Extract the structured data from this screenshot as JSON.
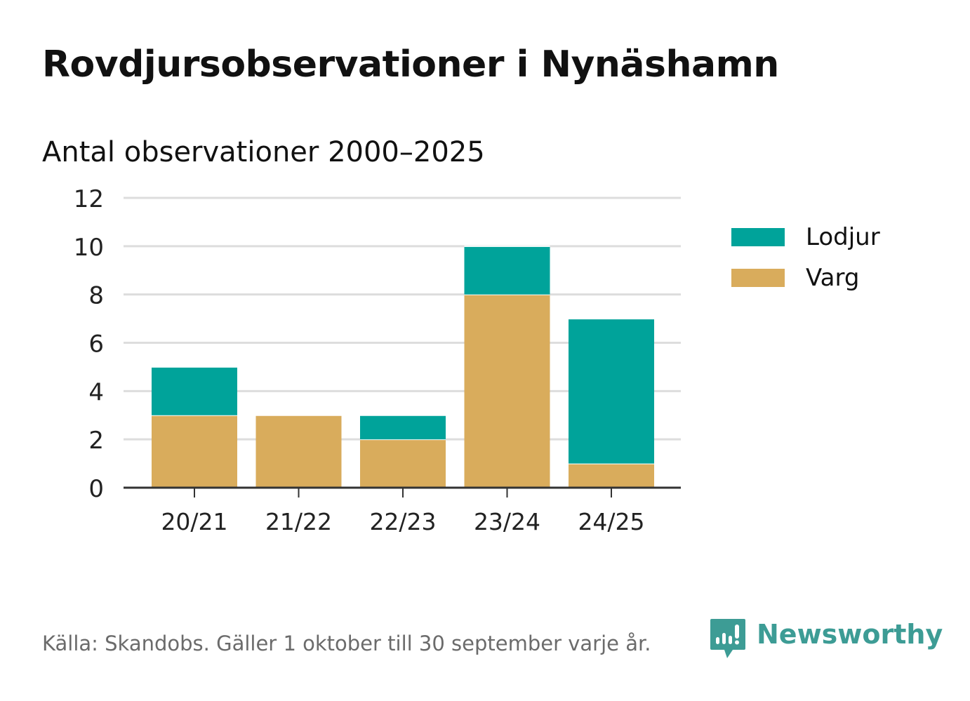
{
  "title": "Rovdjursobservationer i Nynäshamn",
  "subtitle": "Antal observationer 2000–2025",
  "source": "Källa: Skandobs. Gäller 1 oktober till 30 september varje år.",
  "brand": {
    "name": "Newsworthy",
    "icon": "newsworthy-logo-icon",
    "color": "#3d9c95"
  },
  "colors": {
    "lodjur": "#00a39a",
    "varg": "#d9ac5c",
    "grid": "#dddddd",
    "axis": "#333333"
  },
  "legend": [
    {
      "label": "Lodjur",
      "color": "#00a39a"
    },
    {
      "label": "Varg",
      "color": "#d9ac5c"
    }
  ],
  "chart_data": {
    "type": "bar",
    "stacked": true,
    "categories": [
      "20/21",
      "21/22",
      "22/23",
      "23/24",
      "24/25"
    ],
    "series": [
      {
        "name": "Varg",
        "values": [
          3,
          3,
          2,
          8,
          1
        ],
        "color": "#d9ac5c"
      },
      {
        "name": "Lodjur",
        "values": [
          2,
          0,
          1,
          2,
          6
        ],
        "color": "#00a39a"
      }
    ],
    "yticks": [
      0,
      2,
      4,
      6,
      8,
      10,
      12
    ],
    "ylim": [
      0,
      12
    ],
    "grid": true,
    "legend_position": "right"
  }
}
